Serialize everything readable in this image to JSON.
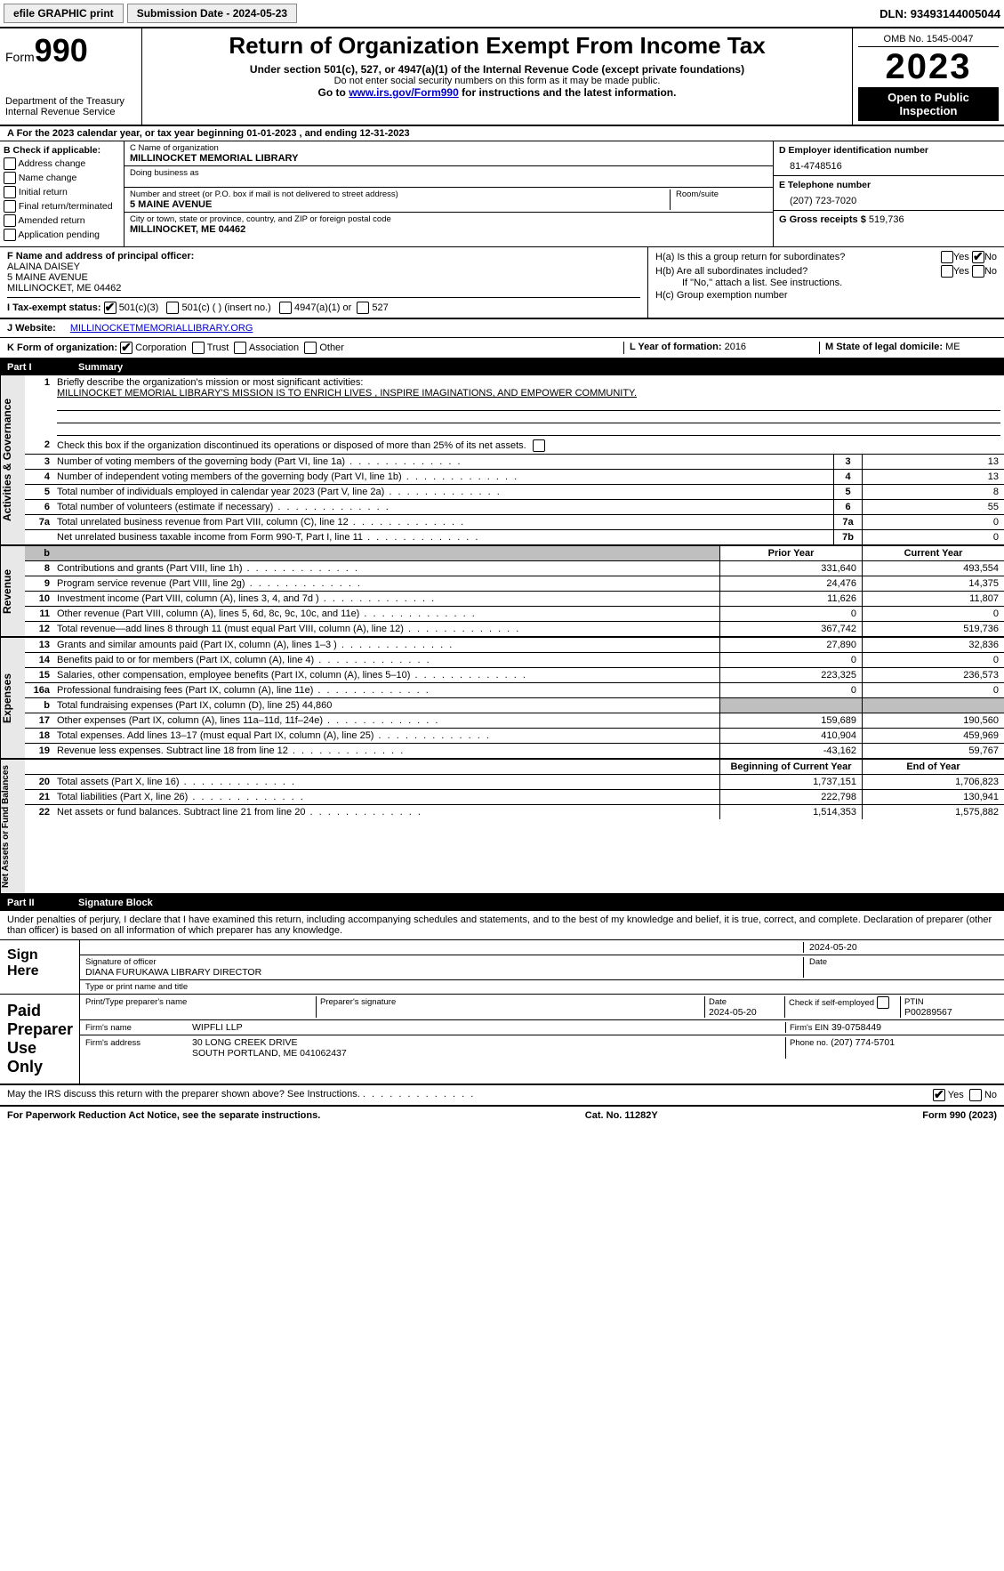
{
  "topbar": {
    "efile": "efile GRAPHIC print",
    "submission": "Submission Date - 2024-05-23",
    "dln": "DLN: 93493144005044"
  },
  "header": {
    "form_label": "Form",
    "form_num": "990",
    "dept": "Department of the Treasury",
    "irs": "Internal Revenue Service",
    "title": "Return of Organization Exempt From Income Tax",
    "sub1": "Under section 501(c), 527, or 4947(a)(1) of the Internal Revenue Code (except private foundations)",
    "sub2": "Do not enter social security numbers on this form as it may be made public.",
    "sub3_pre": "Go to ",
    "sub3_link": "www.irs.gov/Form990",
    "sub3_post": " for instructions and the latest information.",
    "omb": "OMB No. 1545-0047",
    "year": "2023",
    "open": "Open to Public Inspection"
  },
  "lineA": "A For the 2023 calendar year, or tax year beginning 01-01-2023   , and ending 12-31-2023",
  "colB": {
    "title": "B Check if applicable:",
    "items": [
      "Address change",
      "Name change",
      "Initial return",
      "Final return/terminated",
      "Amended return",
      "Application pending"
    ]
  },
  "colC": {
    "name_lbl": "C Name of organization",
    "name": "MILLINOCKET MEMORIAL LIBRARY",
    "dba_lbl": "Doing business as",
    "dba": "",
    "street_lbl": "Number and street (or P.O. box if mail is not delivered to street address)",
    "street": "5 MAINE AVENUE",
    "room_lbl": "Room/suite",
    "city_lbl": "City or town, state or province, country, and ZIP or foreign postal code",
    "city": "MILLINOCKET, ME  04462"
  },
  "colDE": {
    "d_lbl": "D Employer identification number",
    "d": "81-4748516",
    "e_lbl": "E Telephone number",
    "e": "(207) 723-7020",
    "g_lbl": "G Gross receipts $",
    "g": "519,736"
  },
  "rowF": {
    "lbl": "F  Name and address of principal officer:",
    "l1": "ALAINA DAISEY",
    "l2": "5 MAINE AVENUE",
    "l3": "MILLINOCKET, ME  04462"
  },
  "rowH": {
    "ha": "H(a)  Is this a group return for subordinates?",
    "hb": "H(b)  Are all subordinates included?",
    "hb_note": "If \"No,\" attach a list. See instructions.",
    "hc": "H(c)  Group exemption number",
    "yes": "Yes",
    "no": "No"
  },
  "rowI": {
    "label": "I  Tax-exempt status:",
    "c3": "501(c)(3)",
    "c_insert": "501(c) (  ) (insert no.)",
    "a1": "4947(a)(1) or",
    "s527": "527"
  },
  "rowJ": {
    "label": "J  Website:",
    "value": "MILLINOCKETMEMORIALLIBRARY.ORG"
  },
  "rowK": {
    "label": "K Form of organization:",
    "corp": "Corporation",
    "trust": "Trust",
    "assoc": "Association",
    "other": "Other",
    "l_label": "L Year of formation:",
    "l_val": "2016",
    "m_label": "M State of legal domicile:",
    "m_val": "ME"
  },
  "part1": {
    "num": "Part I",
    "title": "Summary"
  },
  "summary": {
    "brief_lbl": "Briefly describe the organization's mission or most significant activities:",
    "brief": "MILLINOCKET MEMORIAL LIBRARY'S MISSION IS TO ENRICH LIVES , INSPIRE IMAGINATIONS, AND EMPOWER COMMUNITY.",
    "check2": "Check this box        if the organization discontinued its operations or disposed of more than 25% of its net assets.",
    "rows_gov": [
      {
        "n": "3",
        "d": "Number of voting members of the governing body (Part VI, line 1a)",
        "b": "3",
        "v": "13"
      },
      {
        "n": "4",
        "d": "Number of independent voting members of the governing body (Part VI, line 1b)",
        "b": "4",
        "v": "13"
      },
      {
        "n": "5",
        "d": "Total number of individuals employed in calendar year 2023 (Part V, line 2a)",
        "b": "5",
        "v": "8"
      },
      {
        "n": "6",
        "d": "Total number of volunteers (estimate if necessary)",
        "b": "6",
        "v": "55"
      },
      {
        "n": "7a",
        "d": "Total unrelated business revenue from Part VIII, column (C), line 12",
        "b": "7a",
        "v": "0"
      },
      {
        "n": "",
        "d": "Net unrelated business taxable income from Form 990-T, Part I, line 11",
        "b": "7b",
        "v": "0"
      }
    ],
    "col_prior": "Prior Year",
    "col_current": "Current Year",
    "rows_rev": [
      {
        "n": "8",
        "d": "Contributions and grants (Part VIII, line 1h)",
        "p": "331,640",
        "c": "493,554"
      },
      {
        "n": "9",
        "d": "Program service revenue (Part VIII, line 2g)",
        "p": "24,476",
        "c": "14,375"
      },
      {
        "n": "10",
        "d": "Investment income (Part VIII, column (A), lines 3, 4, and 7d )",
        "p": "11,626",
        "c": "11,807"
      },
      {
        "n": "11",
        "d": "Other revenue (Part VIII, column (A), lines 5, 6d, 8c, 9c, 10c, and 11e)",
        "p": "0",
        "c": "0"
      },
      {
        "n": "12",
        "d": "Total revenue—add lines 8 through 11 (must equal Part VIII, column (A), line 12)",
        "p": "367,742",
        "c": "519,736"
      }
    ],
    "rows_exp": [
      {
        "n": "13",
        "d": "Grants and similar amounts paid (Part IX, column (A), lines 1–3 )",
        "p": "27,890",
        "c": "32,836"
      },
      {
        "n": "14",
        "d": "Benefits paid to or for members (Part IX, column (A), line 4)",
        "p": "0",
        "c": "0"
      },
      {
        "n": "15",
        "d": "Salaries, other compensation, employee benefits (Part IX, column (A), lines 5–10)",
        "p": "223,325",
        "c": "236,573"
      },
      {
        "n": "16a",
        "d": "Professional fundraising fees (Part IX, column (A), line 11e)",
        "p": "0",
        "c": "0"
      },
      {
        "n": "b",
        "d": "Total fundraising expenses (Part IX, column (D), line 25) 44,860",
        "p": "",
        "c": "",
        "shade": true
      },
      {
        "n": "17",
        "d": "Other expenses (Part IX, column (A), lines 11a–11d, 11f–24e)",
        "p": "159,689",
        "c": "190,560"
      },
      {
        "n": "18",
        "d": "Total expenses. Add lines 13–17 (must equal Part IX, column (A), line 25)",
        "p": "410,904",
        "c": "459,969"
      },
      {
        "n": "19",
        "d": "Revenue less expenses. Subtract line 18 from line 12",
        "p": "-43,162",
        "c": "59,767"
      }
    ],
    "col_begin": "Beginning of Current Year",
    "col_end": "End of Year",
    "rows_net": [
      {
        "n": "20",
        "d": "Total assets (Part X, line 16)",
        "p": "1,737,151",
        "c": "1,706,823"
      },
      {
        "n": "21",
        "d": "Total liabilities (Part X, line 26)",
        "p": "222,798",
        "c": "130,941"
      },
      {
        "n": "22",
        "d": "Net assets or fund balances. Subtract line 21 from line 20",
        "p": "1,514,353",
        "c": "1,575,882"
      }
    ],
    "side_gov": "Activities & Governance",
    "side_rev": "Revenue",
    "side_exp": "Expenses",
    "side_net": "Net Assets or Fund Balances"
  },
  "part2": {
    "num": "Part II",
    "title": "Signature Block"
  },
  "perjury": "Under penalties of perjury, I declare that I have examined this return, including accompanying schedules and statements, and to the best of my knowledge and belief, it is true, correct, and complete. Declaration of preparer (other than officer) is based on all information of which preparer has any knowledge.",
  "sign": {
    "here": "Sign Here",
    "date": "2024-05-20",
    "sig_lbl": "Signature of officer",
    "name": "DIANA FURUKAWA  LIBRARY DIRECTOR",
    "name_lbl": "Type or print name and title",
    "date_lbl": "Date"
  },
  "preparer": {
    "left": "Paid Preparer Use Only",
    "print_lbl": "Print/Type preparer's name",
    "sig_lbl": "Preparer's signature",
    "date_lbl": "Date",
    "date": "2024-05-20",
    "check_lbl": "Check         if self-employed",
    "ptin_lbl": "PTIN",
    "ptin": "P00289567",
    "firm_name_lbl": "Firm's name",
    "firm_name": "WIPFLI LLP",
    "firm_ein_lbl": "Firm's EIN",
    "firm_ein": "39-0758449",
    "firm_addr_lbl": "Firm's address",
    "firm_addr1": "30 LONG CREEK DRIVE",
    "firm_addr2": "SOUTH PORTLAND, ME  041062437",
    "phone_lbl": "Phone no.",
    "phone": "(207) 774-5701"
  },
  "discuss": {
    "q": "May the IRS discuss this return with the preparer shown above? See Instructions.",
    "yes": "Yes",
    "no": "No"
  },
  "footer": {
    "left": "For Paperwork Reduction Act Notice, see the separate instructions.",
    "mid": "Cat. No. 11282Y",
    "right": "Form 990 (2023)"
  }
}
